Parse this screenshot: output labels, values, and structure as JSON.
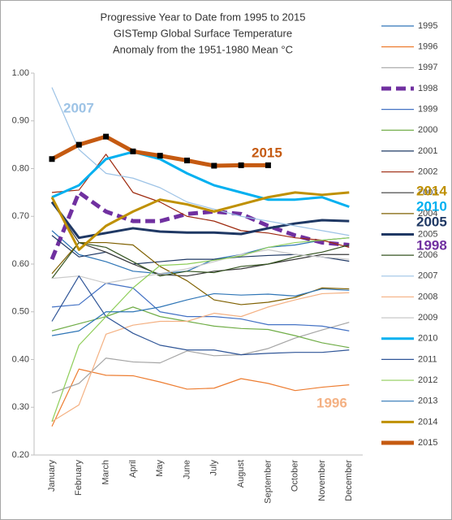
{
  "chart_data": {
    "type": "line",
    "title": [
      "Progressive Year to Date from 1995 to 2015",
      "GISTemp Global Surface Temperature",
      "Anomaly from the 1951-1980 Mean °C"
    ],
    "categories": [
      "January",
      "February",
      "March",
      "April",
      "May",
      "June",
      "July",
      "August",
      "September",
      "October",
      "November",
      "December"
    ],
    "ylim": [
      0.2,
      1.0
    ],
    "yticks": [
      {
        "value": 0.2,
        "label": "0.20"
      },
      {
        "value": 0.3,
        "label": "0.30"
      },
      {
        "value": 0.4,
        "label": "0.40"
      },
      {
        "value": 0.5,
        "label": "0.50"
      },
      {
        "value": 0.6,
        "label": "0.60"
      },
      {
        "value": 0.7,
        "label": "0.70"
      },
      {
        "value": 0.8,
        "label": "0.80"
      },
      {
        "value": 0.9,
        "label": "0.90"
      },
      {
        "value": 1.0,
        "label": "1.00"
      }
    ],
    "grid": false,
    "legend": "right",
    "series": [
      {
        "name": "1995",
        "color": "#2e75b6",
        "values": [
          0.67,
          0.62,
          0.605,
          0.585,
          0.58,
          0.585,
          0.61,
          0.62,
          0.635,
          0.64,
          0.65,
          0.655
        ]
      },
      {
        "name": "1996",
        "color": "#ed7d31",
        "values": [
          0.26,
          0.38,
          0.367,
          0.366,
          0.353,
          0.338,
          0.34,
          0.36,
          0.35,
          0.335,
          0.342,
          0.347
        ]
      },
      {
        "name": "1997",
        "color": "#a5a5a5",
        "values": [
          0.33,
          0.35,
          0.403,
          0.395,
          0.393,
          0.418,
          0.408,
          0.41,
          0.423,
          0.445,
          0.462,
          0.478
        ]
      },
      {
        "name": "1998",
        "color": "#7030a0",
        "highlight": true,
        "dashed": true,
        "values": [
          0.61,
          0.75,
          0.71,
          0.69,
          0.69,
          0.705,
          0.71,
          0.705,
          0.68,
          0.66,
          0.645,
          0.64
        ]
      },
      {
        "name": "1999",
        "color": "#4472c4",
        "values": [
          0.51,
          0.515,
          0.56,
          0.55,
          0.5,
          0.49,
          0.49,
          0.485,
          0.473,
          0.473,
          0.47,
          0.46
        ]
      },
      {
        "name": "2000",
        "color": "#70ad47",
        "values": [
          0.46,
          0.475,
          0.49,
          0.51,
          0.49,
          0.48,
          0.47,
          0.465,
          0.463,
          0.45,
          0.435,
          0.425
        ]
      },
      {
        "name": "2001",
        "color": "#1f3864",
        "values": [
          0.66,
          0.615,
          0.625,
          0.6,
          0.605,
          0.61,
          0.61,
          0.615,
          0.618,
          0.62,
          0.615,
          0.606
        ]
      },
      {
        "name": "2002",
        "color": "#9e2a0f",
        "values": [
          0.75,
          0.755,
          0.83,
          0.75,
          0.73,
          0.7,
          0.69,
          0.67,
          0.665,
          0.655,
          0.65,
          0.635
        ]
      },
      {
        "name": "2003",
        "color": "#3a3a3a",
        "values": [
          0.73,
          0.645,
          0.625,
          0.6,
          0.578,
          0.575,
          0.585,
          0.59,
          0.6,
          0.61,
          0.62,
          0.62
        ]
      },
      {
        "name": "2004",
        "color": "#7f6000",
        "values": [
          0.58,
          0.645,
          0.645,
          0.64,
          0.595,
          0.565,
          0.525,
          0.515,
          0.52,
          0.53,
          0.55,
          0.548
        ]
      },
      {
        "name": "2005",
        "color": "#1f3864",
        "highlight": true,
        "values": [
          0.73,
          0.655,
          0.665,
          0.675,
          0.668,
          0.666,
          0.666,
          0.663,
          0.675,
          0.685,
          0.692,
          0.69
        ]
      },
      {
        "name": "2006",
        "color": "#375623",
        "values": [
          0.57,
          0.645,
          0.635,
          0.605,
          0.575,
          0.585,
          0.582,
          0.595,
          0.6,
          0.615,
          0.625,
          0.64
        ]
      },
      {
        "name": "2007",
        "color": "#9dc3e6",
        "values": [
          0.97,
          0.84,
          0.79,
          0.78,
          0.76,
          0.73,
          0.715,
          0.7,
          0.69,
          0.68,
          0.67,
          0.66
        ]
      },
      {
        "name": "2008",
        "color": "#f4b183",
        "values": [
          0.27,
          0.305,
          0.453,
          0.472,
          0.48,
          0.48,
          0.497,
          0.49,
          0.51,
          0.525,
          0.538,
          0.54
        ]
      },
      {
        "name": "2009",
        "color": "#c9c9c9",
        "values": [
          0.57,
          0.575,
          0.56,
          0.57,
          0.58,
          0.59,
          0.605,
          0.62,
          0.63,
          0.62,
          0.615,
          0.61
        ]
      },
      {
        "name": "2010",
        "color": "#00b0f0",
        "highlight": true,
        "values": [
          0.74,
          0.765,
          0.82,
          0.835,
          0.82,
          0.79,
          0.765,
          0.75,
          0.735,
          0.735,
          0.74,
          0.72
        ]
      },
      {
        "name": "2011",
        "color": "#2f5597",
        "values": [
          0.48,
          0.575,
          0.49,
          0.455,
          0.43,
          0.42,
          0.42,
          0.41,
          0.413,
          0.415,
          0.415,
          0.42
        ]
      },
      {
        "name": "2012",
        "color": "#8fce5a",
        "values": [
          0.27,
          0.43,
          0.49,
          0.55,
          0.597,
          0.6,
          0.608,
          0.617,
          0.635,
          0.645,
          0.65,
          0.655
        ]
      },
      {
        "name": "2013",
        "color": "#2e75b6",
        "values": [
          0.45,
          0.46,
          0.5,
          0.5,
          0.51,
          0.525,
          0.538,
          0.535,
          0.537,
          0.533,
          0.548,
          0.545
        ]
      },
      {
        "name": "2014",
        "color": "#bf9000",
        "highlight": true,
        "values": [
          0.74,
          0.63,
          0.68,
          0.71,
          0.735,
          0.725,
          0.71,
          0.725,
          0.74,
          0.75,
          0.745,
          0.75
        ]
      },
      {
        "name": "2015",
        "color": "#c55a11",
        "highlight": true,
        "markers": "square",
        "values": [
          0.82,
          0.85,
          0.867,
          0.836,
          0.827,
          0.817,
          0.806,
          0.807,
          0.807,
          null,
          null,
          null
        ]
      }
    ],
    "annotations": [
      "2007",
      "2015",
      "2014",
      "2010",
      "2005",
      "1998",
      "1996"
    ]
  }
}
